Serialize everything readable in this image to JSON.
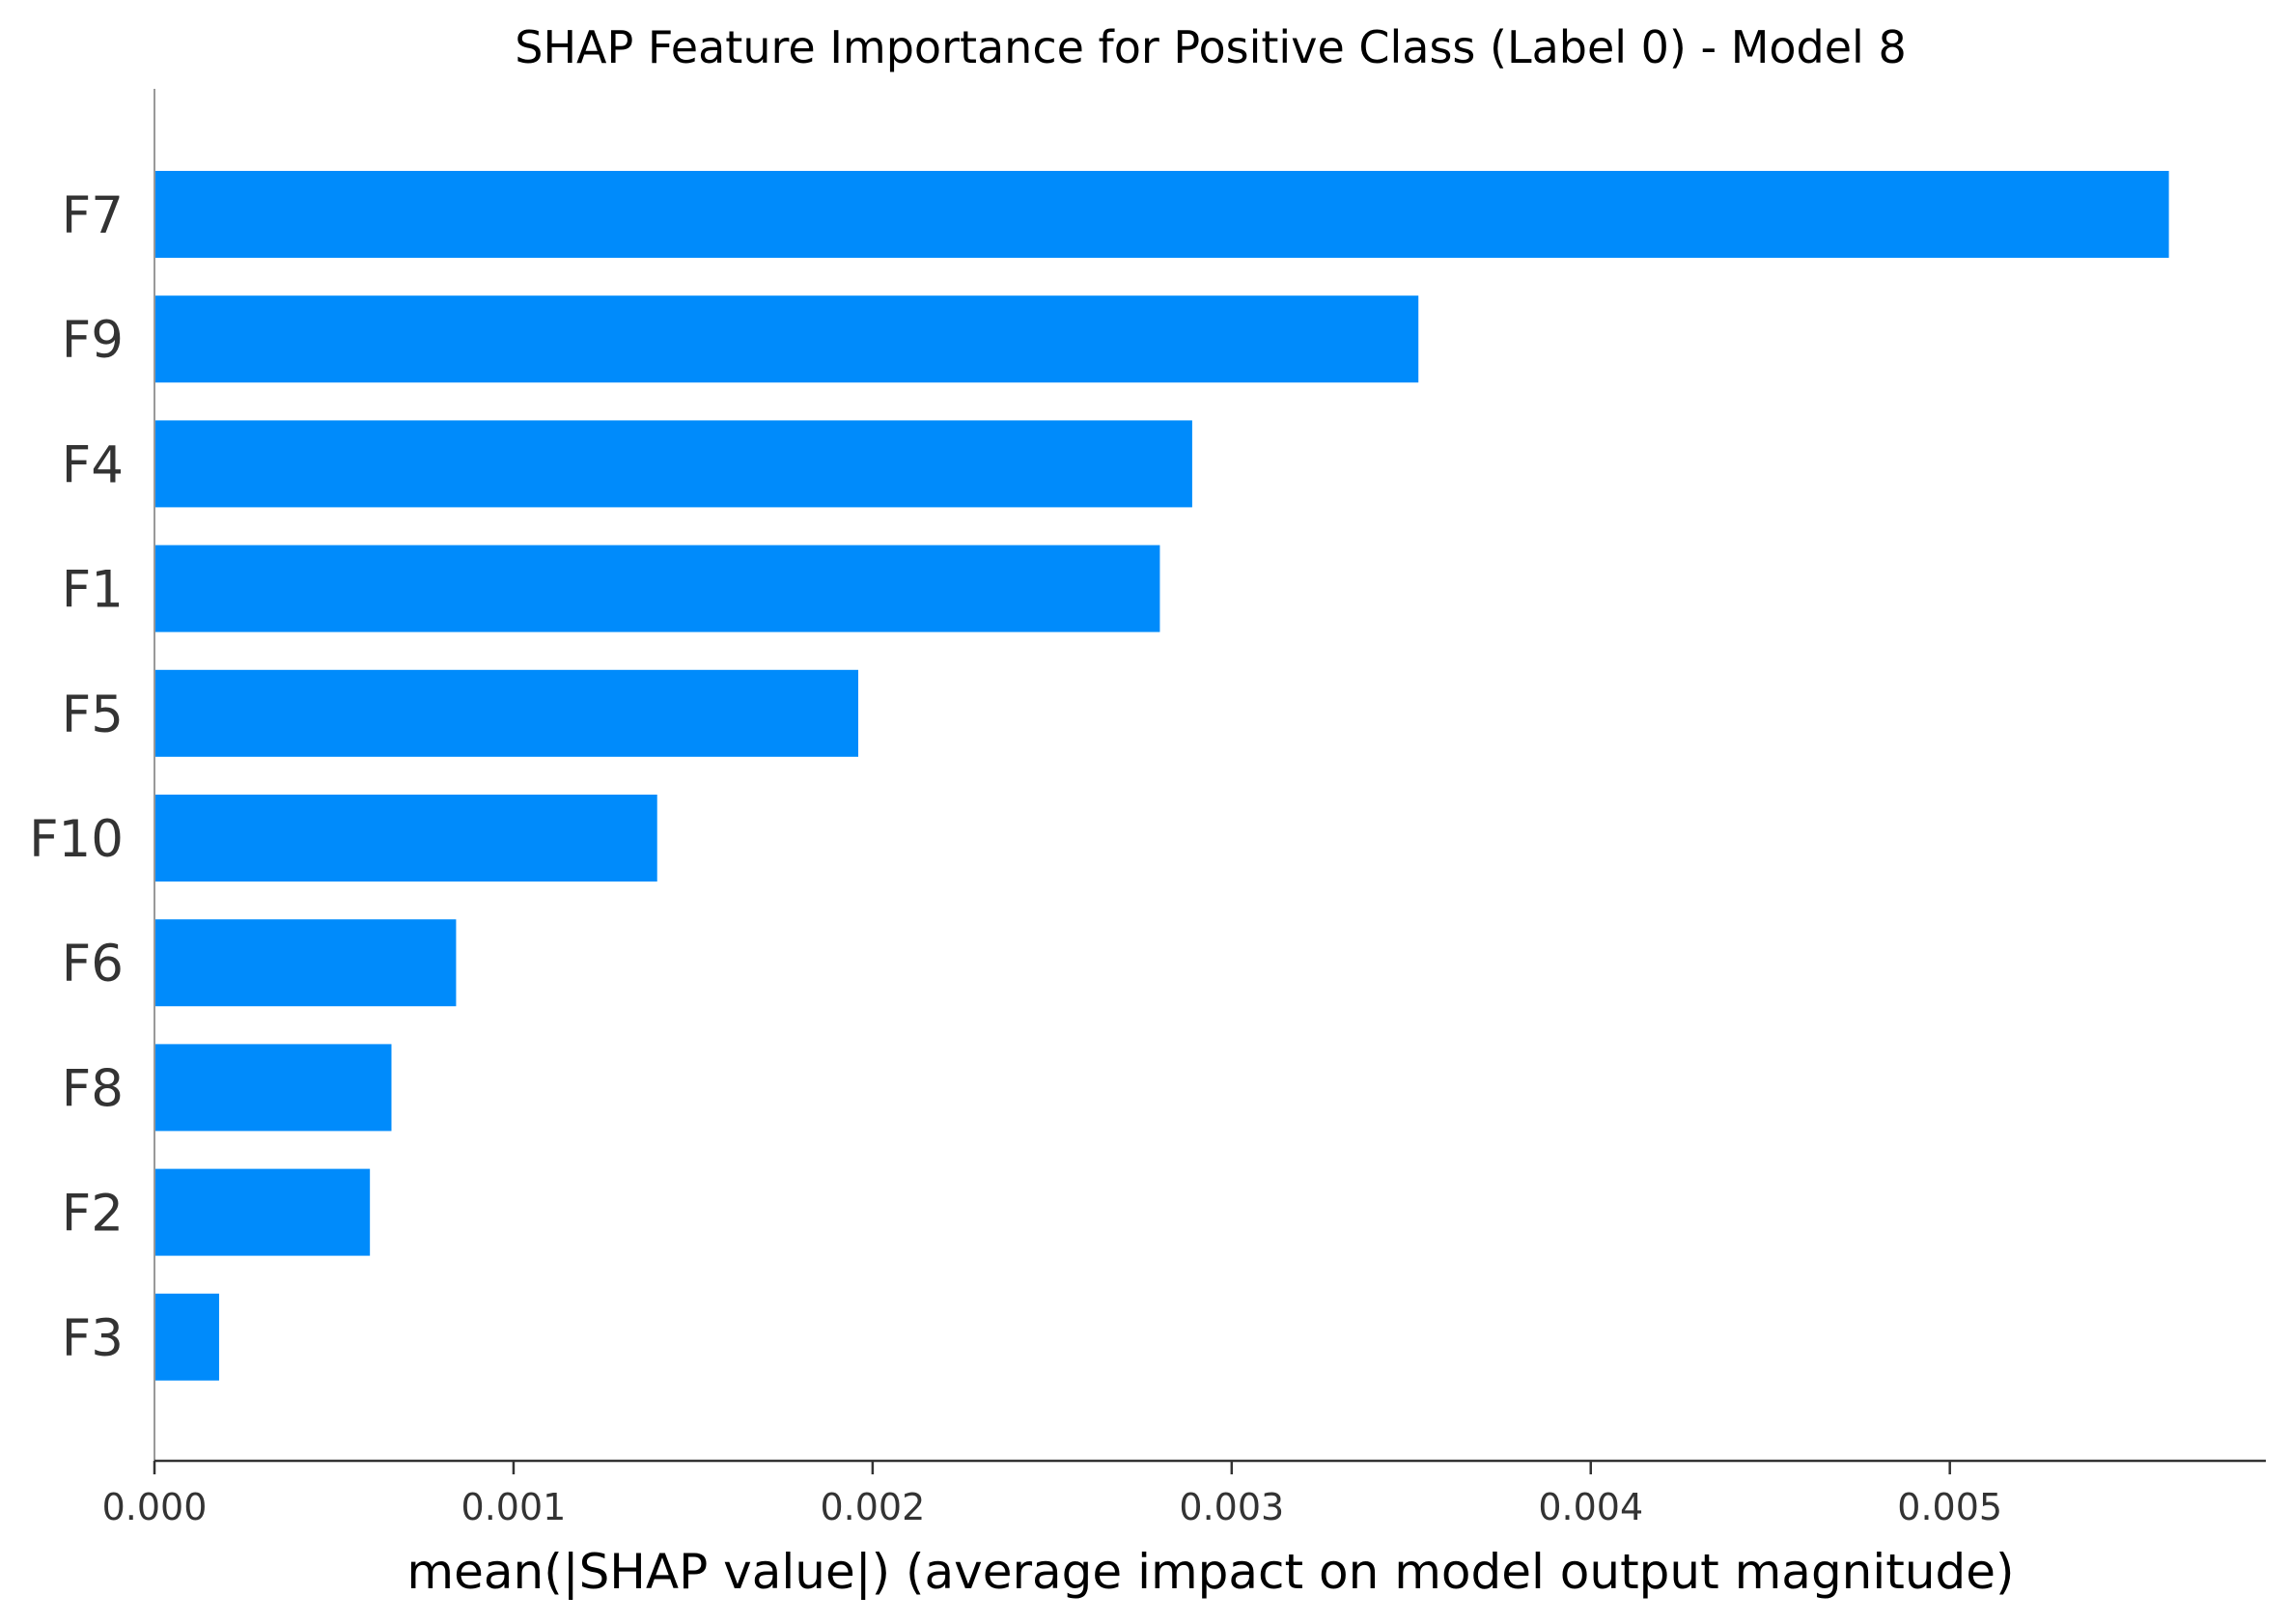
{
  "chart_data": {
    "type": "bar",
    "orientation": "horizontal",
    "title": "SHAP Feature Importance for Positive Class (Label 0) - Model 8",
    "xlabel": "mean(|SHAP value|) (average impact on model output magnitude)",
    "ylabel": "",
    "categories": [
      "F7",
      "F9",
      "F4",
      "F1",
      "F5",
      "F10",
      "F6",
      "F8",
      "F2",
      "F3"
    ],
    "values": [
      0.00561,
      0.00352,
      0.00289,
      0.0028,
      0.00196,
      0.0014,
      0.00084,
      0.00066,
      0.0006,
      0.00018
    ],
    "xlim": [
      0,
      0.00588
    ],
    "xticks": [
      "0.000",
      "0.001",
      "0.002",
      "0.003",
      "0.004",
      "0.005"
    ],
    "grid": false,
    "bar_color": "#008bfb"
  }
}
